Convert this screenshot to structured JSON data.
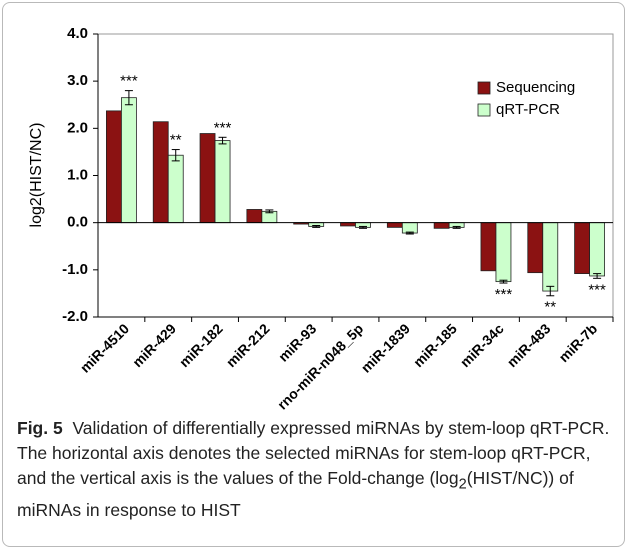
{
  "chart_data": {
    "type": "bar",
    "y_label": "log2(HIST/NC)",
    "categories": [
      "miR-4510",
      "miR-429",
      "miR-182",
      "miR-212",
      "miR-93",
      "rno-miR-n048_5p",
      "miR-1839",
      "miR-185",
      "miR-34c",
      "miR-483",
      "miR-7b"
    ],
    "series": [
      {
        "name": "Sequencing",
        "color": "#8b1212",
        "values": [
          2.37,
          2.14,
          1.89,
          0.28,
          -0.03,
          -0.07,
          -0.1,
          -0.12,
          -1.02,
          -1.06,
          -1.08
        ]
      },
      {
        "name": "qRT-PCR",
        "color": "#ccffcc",
        "values": [
          2.65,
          1.43,
          1.74,
          0.24,
          -0.08,
          -0.1,
          -0.22,
          -0.1,
          -1.25,
          -1.45,
          -1.13
        ],
        "errors": [
          0.15,
          0.12,
          0.07,
          0.03,
          0.02,
          0.02,
          0.02,
          0.02,
          0.03,
          0.1,
          0.05
        ],
        "significance": [
          "***",
          "**",
          "***",
          null,
          null,
          null,
          null,
          null,
          "***",
          "**",
          "***"
        ]
      }
    ],
    "ylim": [
      -2,
      4
    ],
    "yticks": [
      {
        "value": -2,
        "label": "-2.0"
      },
      {
        "value": -1,
        "label": "-1.0"
      },
      {
        "value": 0,
        "label": "0.0"
      },
      {
        "value": 1,
        "label": "1.0"
      },
      {
        "value": 2,
        "label": "2.0"
      },
      {
        "value": 3,
        "label": "3.0"
      },
      {
        "value": 4,
        "label": "4.0"
      }
    ],
    "legend": "top-right"
  },
  "caption": {
    "label": "Fig. 5",
    "text": "Validation of differentially expressed miRNAs by stem-loop qRT-PCR. The horizontal axis denotes the selected miRNAs for stem-loop qRT-PCR, and the vertical axis is the values of the Fold-change (log",
    "subscript": "2",
    "text_end": "(HIST/NC)) of miRNAs in response to HIST"
  }
}
